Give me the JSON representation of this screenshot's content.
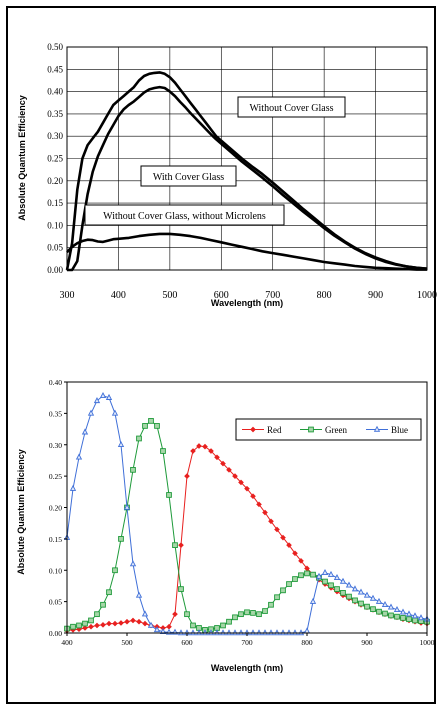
{
  "chart_data": [
    {
      "type": "line",
      "title": "",
      "xlabel": "Wavelength (nm)",
      "ylabel": "Absolute Quantum Efficiency",
      "xlim": [
        300,
        1000
      ],
      "ylim": [
        0,
        0.5
      ],
      "xticks": [
        "300",
        "400",
        "500",
        "600",
        "700",
        "800",
        "900",
        "1000"
      ],
      "yticks": [
        "0.00",
        "0.05",
        "0.10",
        "0.15",
        "0.20",
        "0.25",
        "0.30",
        "0.35",
        "0.40",
        "0.45",
        "0.50"
      ],
      "grid": true,
      "series": [
        {
          "name": "Without Cover Glass",
          "x": [
            300,
            310,
            320,
            330,
            340,
            350,
            360,
            370,
            380,
            390,
            400,
            410,
            420,
            430,
            440,
            450,
            460,
            470,
            480,
            490,
            500,
            510,
            520,
            530,
            540,
            550,
            560,
            570,
            580,
            590,
            600,
            620,
            640,
            660,
            680,
            700,
            720,
            740,
            760,
            780,
            800,
            820,
            840,
            860,
            880,
            900,
            920,
            940,
            960,
            980,
            1000
          ],
          "y": [
            0.0,
            0.06,
            0.18,
            0.25,
            0.28,
            0.295,
            0.31,
            0.33,
            0.35,
            0.37,
            0.38,
            0.39,
            0.4,
            0.41,
            0.425,
            0.435,
            0.44,
            0.442,
            0.443,
            0.44,
            0.432,
            0.42,
            0.405,
            0.39,
            0.375,
            0.36,
            0.345,
            0.33,
            0.315,
            0.3,
            0.29,
            0.27,
            0.25,
            0.232,
            0.215,
            0.196,
            0.176,
            0.156,
            0.136,
            0.117,
            0.098,
            0.08,
            0.064,
            0.05,
            0.038,
            0.028,
            0.02,
            0.013,
            0.008,
            0.005,
            0.003
          ]
        },
        {
          "name": "With Cover Glass",
          "x": [
            300,
            310,
            320,
            330,
            340,
            350,
            360,
            370,
            380,
            390,
            400,
            410,
            420,
            430,
            440,
            450,
            460,
            470,
            480,
            490,
            500,
            510,
            520,
            530,
            540,
            550,
            560,
            570,
            580,
            590,
            600,
            620,
            640,
            660,
            680,
            700,
            720,
            740,
            760,
            780,
            800,
            820,
            840,
            860,
            880,
            900,
            920,
            940,
            960,
            980,
            1000
          ],
          "y": [
            0.0,
            0.0,
            0.02,
            0.1,
            0.17,
            0.22,
            0.255,
            0.28,
            0.305,
            0.325,
            0.345,
            0.36,
            0.37,
            0.378,
            0.388,
            0.398,
            0.405,
            0.408,
            0.41,
            0.408,
            0.4,
            0.39,
            0.377,
            0.365,
            0.352,
            0.34,
            0.328,
            0.316,
            0.304,
            0.293,
            0.283,
            0.263,
            0.243,
            0.225,
            0.207,
            0.188,
            0.168,
            0.149,
            0.13,
            0.112,
            0.094,
            0.077,
            0.062,
            0.048,
            0.036,
            0.026,
            0.018,
            0.012,
            0.008,
            0.005,
            0.003
          ]
        },
        {
          "name": "Without Cover Glass, without Microlens",
          "x": [
            300,
            310,
            320,
            330,
            340,
            350,
            360,
            370,
            380,
            390,
            400,
            420,
            440,
            460,
            480,
            500,
            520,
            540,
            560,
            580,
            600,
            620,
            640,
            660,
            680,
            700,
            720,
            740,
            760,
            780,
            800,
            820,
            840,
            860,
            880,
            900,
            920,
            940,
            960,
            980,
            1000
          ],
          "y": [
            0.04,
            0.052,
            0.06,
            0.065,
            0.068,
            0.067,
            0.064,
            0.063,
            0.066,
            0.069,
            0.07,
            0.072,
            0.076,
            0.079,
            0.081,
            0.081,
            0.079,
            0.076,
            0.072,
            0.067,
            0.062,
            0.057,
            0.052,
            0.047,
            0.042,
            0.038,
            0.034,
            0.03,
            0.026,
            0.022,
            0.018,
            0.015,
            0.012,
            0.009,
            0.007,
            0.005,
            0.004,
            0.003,
            0.002,
            0.001,
            0.001
          ]
        }
      ],
      "annotations": [
        "Without Cover Glass",
        "With Cover Glass",
        "Without Cover Glass, without Microlens"
      ]
    },
    {
      "type": "line",
      "title": "",
      "xlabel": "Wavelength (nm)",
      "ylabel": "Absolute Quantum Efficiency",
      "xlim": [
        400,
        1000
      ],
      "ylim": [
        0,
        0.4
      ],
      "xticks": [
        "400",
        "500",
        "600",
        "700",
        "800",
        "900",
        "1000"
      ],
      "yticks": [
        "0.00",
        "0.05",
        "0.10",
        "0.15",
        "0.20",
        "0.25",
        "0.30",
        "0.35",
        "0.40"
      ],
      "grid": false,
      "legend_position": "top-right",
      "series": [
        {
          "name": "Red",
          "color": "#e8201f",
          "marker": "diamond",
          "x": [
            400,
            410,
            420,
            430,
            440,
            450,
            460,
            470,
            480,
            490,
            500,
            510,
            520,
            530,
            540,
            550,
            560,
            570,
            580,
            590,
            600,
            610,
            620,
            630,
            640,
            650,
            660,
            670,
            680,
            690,
            700,
            710,
            720,
            730,
            740,
            750,
            760,
            770,
            780,
            790,
            800,
            810,
            820,
            830,
            840,
            850,
            860,
            870,
            880,
            890,
            900,
            910,
            920,
            930,
            940,
            950,
            960,
            970,
            980,
            990,
            1000
          ],
          "y": [
            0.004,
            0.005,
            0.006,
            0.008,
            0.01,
            0.012,
            0.013,
            0.015,
            0.015,
            0.016,
            0.018,
            0.02,
            0.018,
            0.015,
            0.012,
            0.01,
            0.008,
            0.01,
            0.03,
            0.14,
            0.25,
            0.29,
            0.298,
            0.297,
            0.29,
            0.28,
            0.27,
            0.26,
            0.25,
            0.24,
            0.23,
            0.218,
            0.205,
            0.192,
            0.178,
            0.165,
            0.152,
            0.14,
            0.127,
            0.115,
            0.103,
            0.093,
            0.085,
            0.078,
            0.072,
            0.066,
            0.06,
            0.055,
            0.05,
            0.045,
            0.041,
            0.037,
            0.033,
            0.03,
            0.027,
            0.025,
            0.022,
            0.02,
            0.018,
            0.016,
            0.015
          ]
        },
        {
          "name": "Green",
          "color": "#1e9a3a",
          "marker": "square",
          "x": [
            400,
            410,
            420,
            430,
            440,
            450,
            460,
            470,
            480,
            490,
            500,
            510,
            520,
            530,
            540,
            550,
            560,
            570,
            580,
            590,
            600,
            610,
            620,
            630,
            640,
            650,
            660,
            670,
            680,
            690,
            700,
            710,
            720,
            730,
            740,
            750,
            760,
            770,
            780,
            790,
            800,
            810,
            820,
            830,
            840,
            850,
            860,
            870,
            880,
            890,
            900,
            910,
            920,
            930,
            940,
            950,
            960,
            970,
            980,
            990,
            1000
          ],
          "y": [
            0.007,
            0.01,
            0.012,
            0.015,
            0.02,
            0.03,
            0.045,
            0.065,
            0.1,
            0.15,
            0.2,
            0.26,
            0.31,
            0.33,
            0.338,
            0.33,
            0.29,
            0.22,
            0.14,
            0.07,
            0.03,
            0.012,
            0.008,
            0.005,
            0.006,
            0.008,
            0.012,
            0.018,
            0.025,
            0.03,
            0.033,
            0.032,
            0.03,
            0.035,
            0.045,
            0.057,
            0.068,
            0.078,
            0.086,
            0.092,
            0.095,
            0.093,
            0.088,
            0.082,
            0.076,
            0.07,
            0.064,
            0.058,
            0.052,
            0.047,
            0.042,
            0.038,
            0.034,
            0.031,
            0.028,
            0.026,
            0.024,
            0.022,
            0.02,
            0.019,
            0.018
          ]
        },
        {
          "name": "Blue",
          "color": "#3f6fd8",
          "marker": "triangle",
          "x": [
            400,
            410,
            420,
            430,
            440,
            450,
            460,
            470,
            480,
            490,
            500,
            510,
            520,
            530,
            540,
            550,
            560,
            570,
            580,
            590,
            600,
            610,
            620,
            630,
            640,
            650,
            660,
            670,
            680,
            690,
            700,
            710,
            720,
            730,
            740,
            750,
            760,
            770,
            780,
            790,
            800,
            810,
            820,
            830,
            840,
            850,
            860,
            870,
            880,
            890,
            900,
            910,
            920,
            930,
            940,
            950,
            960,
            970,
            980,
            990,
            1000
          ],
          "y": [
            0.152,
            0.23,
            0.28,
            0.32,
            0.35,
            0.37,
            0.378,
            0.375,
            0.35,
            0.3,
            0.2,
            0.11,
            0.06,
            0.03,
            0.012,
            0.005,
            0.002,
            0.001,
            0.001,
            0.0,
            0.0,
            0.0,
            0.0,
            0.0,
            0.0,
            0.0,
            0.0,
            0.0,
            0.0,
            0.0,
            0.0,
            0.0,
            0.0,
            0.0,
            0.0,
            0.0,
            0.0,
            0.0,
            0.0,
            0.0,
            0.003,
            0.05,
            0.09,
            0.096,
            0.093,
            0.088,
            0.082,
            0.076,
            0.07,
            0.065,
            0.06,
            0.055,
            0.05,
            0.045,
            0.041,
            0.037,
            0.033,
            0.03,
            0.027,
            0.024,
            0.022
          ]
        }
      ]
    }
  ]
}
